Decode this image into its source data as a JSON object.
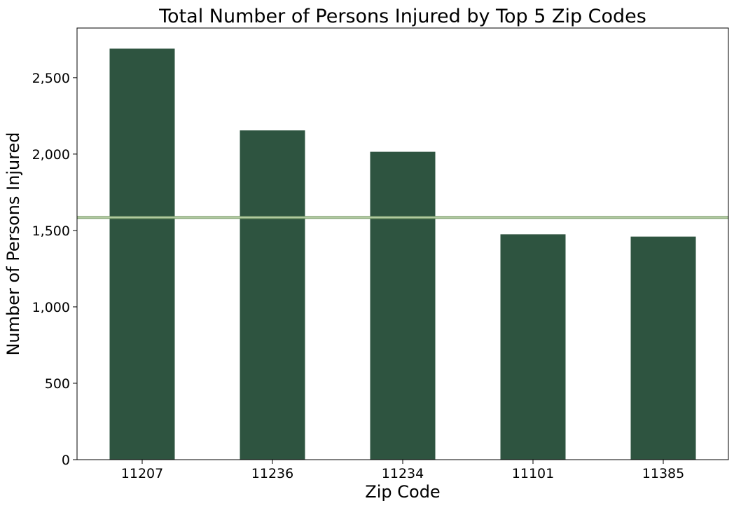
{
  "chart_data": {
    "type": "bar",
    "title": "Total Number of Persons Injured by Top 5 Zip Codes",
    "xlabel": "Zip Code",
    "ylabel": "Number of Persons Injured",
    "categories": [
      "11207",
      "11236",
      "11234",
      "11101",
      "11385"
    ],
    "values": [
      2690,
      2155,
      2015,
      1475,
      1460
    ],
    "ylim": [
      0,
      2825
    ],
    "yticks": [
      0,
      500,
      1000,
      1500,
      2000,
      2500
    ],
    "ytick_labels": [
      "0",
      "500",
      "1,000",
      "1,500",
      "2,000",
      "2,500"
    ],
    "reference_line": {
      "value": 1585
    },
    "grid": false,
    "legend": "none",
    "colors": {
      "bar": "#2e5440",
      "reference_line": "#87a878",
      "reference_line_highlight": "#c8dcb4",
      "axis": "#000000"
    }
  }
}
